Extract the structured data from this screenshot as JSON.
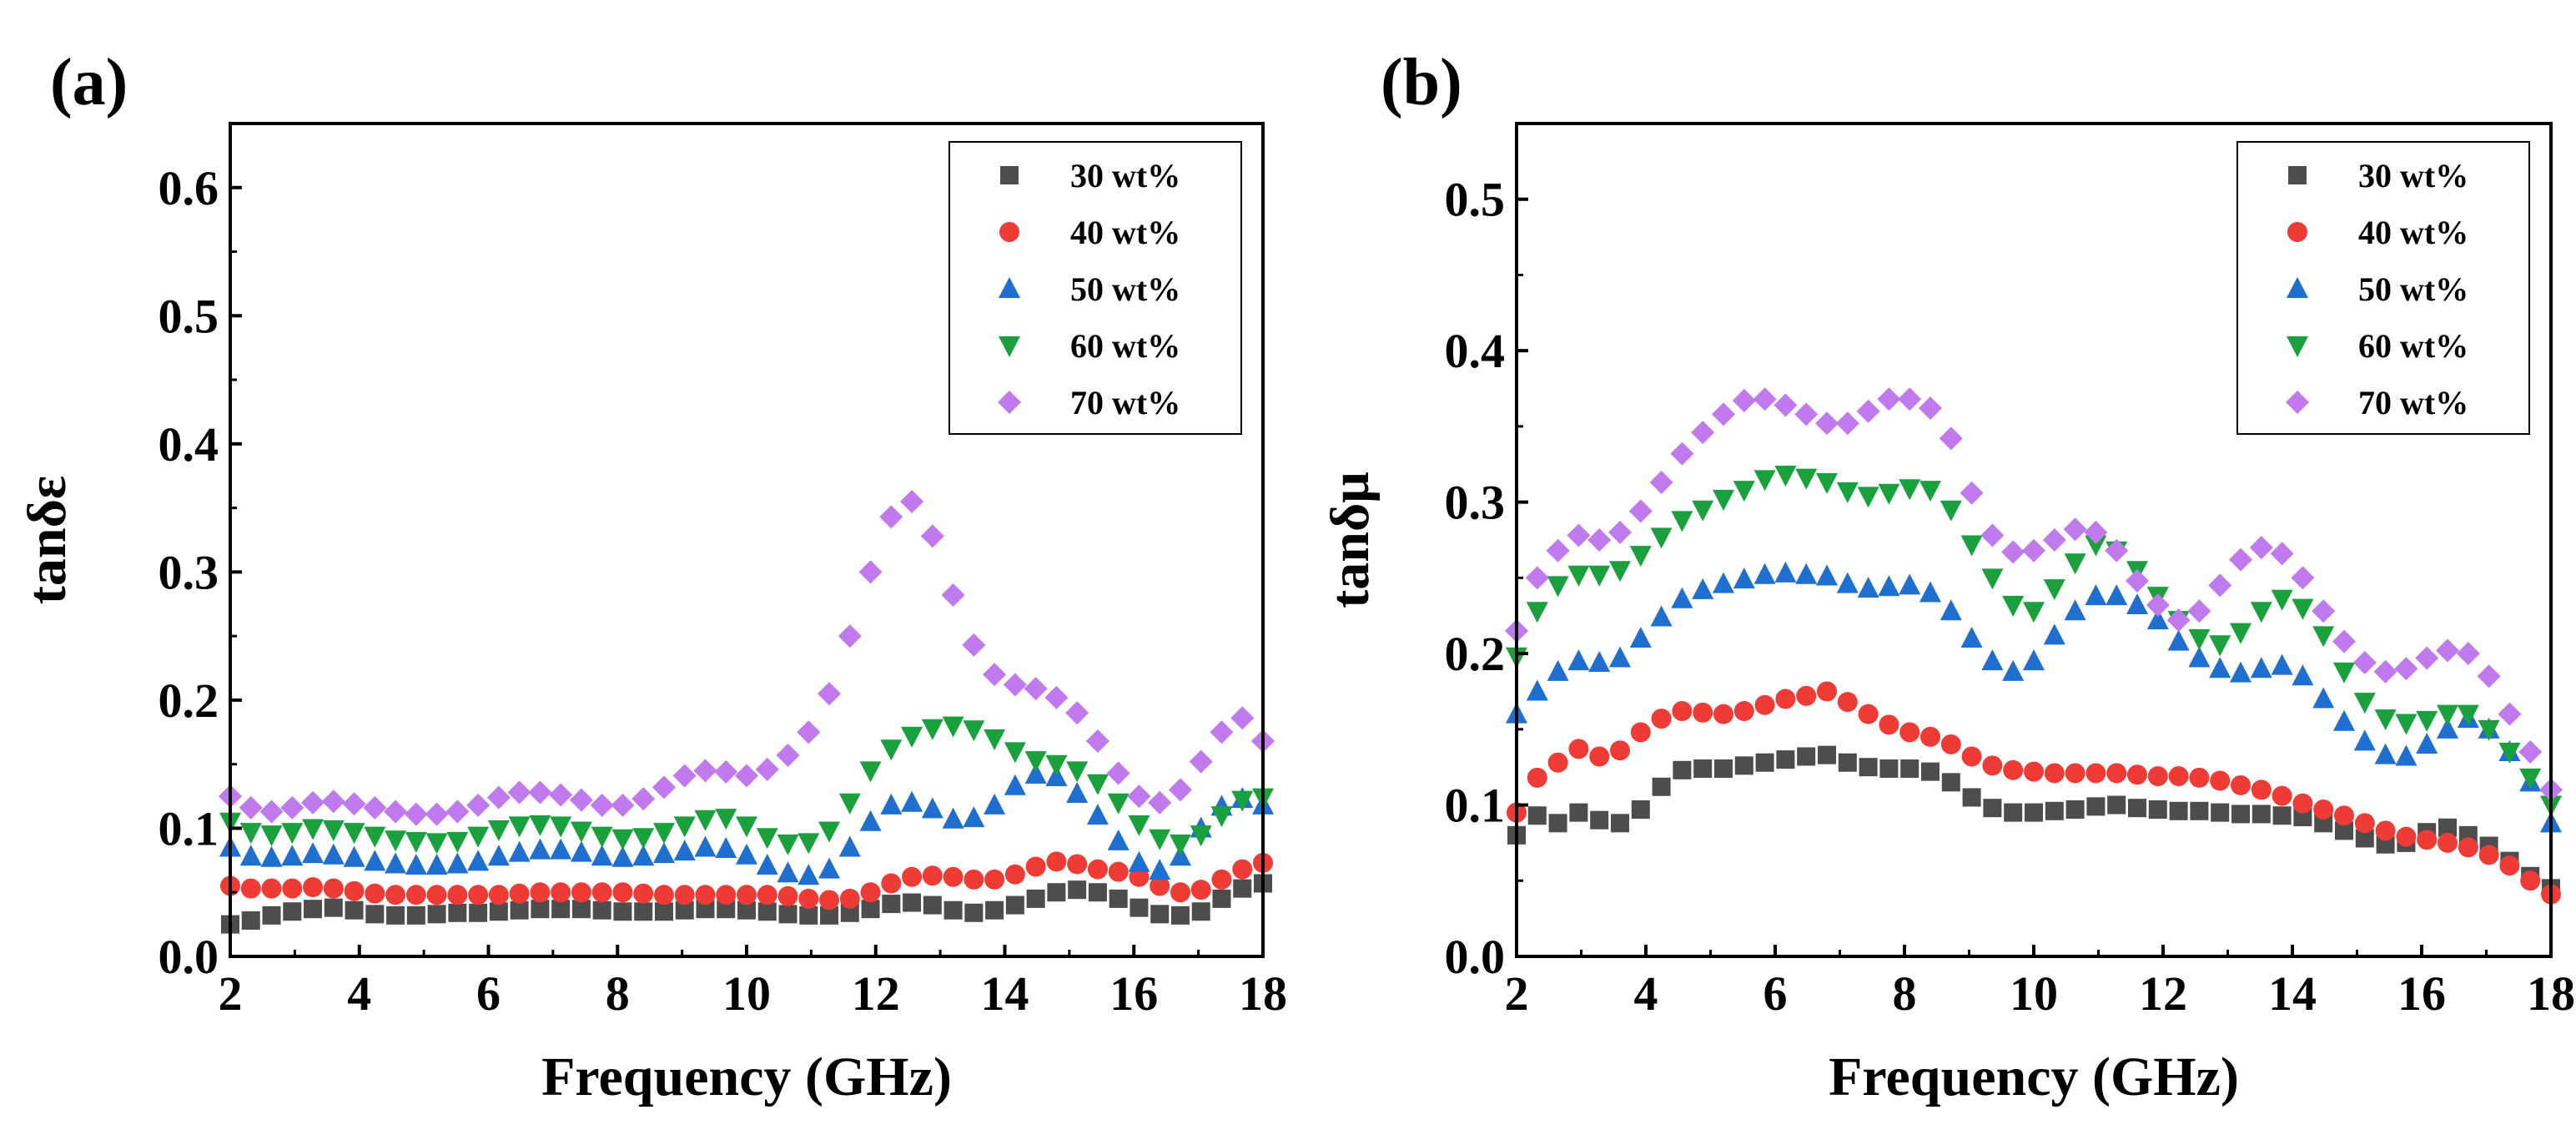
{
  "chart_data": [
    {
      "type": "scatter",
      "panel_label": "(a)",
      "xlabel": "Frequency (GHz)",
      "ylabel": "tanδε",
      "xlim": [
        2,
        18
      ],
      "ylim": [
        0,
        0.65
      ],
      "xticks": [
        2,
        4,
        6,
        8,
        10,
        12,
        14,
        16,
        18
      ],
      "yticks": [
        0.0,
        0.1,
        0.2,
        0.3,
        0.4,
        0.5,
        0.6
      ],
      "ytick_labels": [
        "0.0",
        "0.1",
        "0.2",
        "0.3",
        "0.4",
        "0.5",
        "0.6"
      ],
      "legend_position": "top-right",
      "x": [
        2.0,
        2.32,
        2.64,
        2.96,
        3.28,
        3.6,
        3.92,
        4.24,
        4.56,
        4.88,
        5.2,
        5.52,
        5.84,
        6.16,
        6.48,
        6.8,
        7.12,
        7.44,
        7.76,
        8.08,
        8.4,
        8.72,
        9.04,
        9.36,
        9.68,
        10.0,
        10.32,
        10.64,
        10.96,
        11.28,
        11.6,
        11.92,
        12.24,
        12.56,
        12.88,
        13.2,
        13.52,
        13.84,
        14.16,
        14.48,
        14.8,
        15.12,
        15.44,
        15.76,
        16.08,
        16.4,
        16.72,
        17.04,
        17.36,
        17.68,
        18.0
      ],
      "series": [
        {
          "name": "30 wt%",
          "color": "#4d4d4d",
          "marker": "square",
          "values": [
            0.025,
            0.028,
            0.032,
            0.035,
            0.037,
            0.038,
            0.036,
            0.033,
            0.032,
            0.032,
            0.033,
            0.034,
            0.034,
            0.035,
            0.036,
            0.037,
            0.037,
            0.037,
            0.036,
            0.035,
            0.035,
            0.035,
            0.036,
            0.037,
            0.037,
            0.036,
            0.035,
            0.033,
            0.032,
            0.032,
            0.034,
            0.037,
            0.041,
            0.042,
            0.04,
            0.036,
            0.034,
            0.036,
            0.04,
            0.045,
            0.05,
            0.052,
            0.05,
            0.045,
            0.038,
            0.033,
            0.032,
            0.035,
            0.045,
            0.053,
            0.057
          ]
        },
        {
          "name": "40 wt%",
          "color": "#ef3b36",
          "marker": "circle",
          "values": [
            0.055,
            0.053,
            0.053,
            0.053,
            0.054,
            0.053,
            0.051,
            0.049,
            0.048,
            0.048,
            0.048,
            0.048,
            0.048,
            0.048,
            0.049,
            0.05,
            0.05,
            0.05,
            0.05,
            0.05,
            0.049,
            0.048,
            0.048,
            0.048,
            0.048,
            0.048,
            0.048,
            0.047,
            0.045,
            0.044,
            0.045,
            0.05,
            0.057,
            0.062,
            0.063,
            0.062,
            0.06,
            0.06,
            0.064,
            0.07,
            0.074,
            0.072,
            0.068,
            0.066,
            0.062,
            0.055,
            0.05,
            0.052,
            0.06,
            0.068,
            0.073
          ]
        },
        {
          "name": "50 wt%",
          "color": "#1f6fd1",
          "marker": "triangle-up",
          "values": [
            0.085,
            0.078,
            0.077,
            0.078,
            0.08,
            0.079,
            0.077,
            0.074,
            0.072,
            0.071,
            0.071,
            0.072,
            0.074,
            0.078,
            0.081,
            0.083,
            0.083,
            0.081,
            0.078,
            0.077,
            0.078,
            0.08,
            0.082,
            0.085,
            0.084,
            0.079,
            0.071,
            0.065,
            0.063,
            0.068,
            0.085,
            0.105,
            0.118,
            0.12,
            0.115,
            0.107,
            0.108,
            0.118,
            0.133,
            0.142,
            0.14,
            0.127,
            0.11,
            0.09,
            0.073,
            0.067,
            0.078,
            0.1,
            0.117,
            0.123,
            0.118
          ]
        },
        {
          "name": "60 wt%",
          "color": "#1aa03d",
          "marker": "triangle-down",
          "values": [
            0.105,
            0.097,
            0.095,
            0.097,
            0.1,
            0.099,
            0.097,
            0.094,
            0.091,
            0.09,
            0.089,
            0.09,
            0.094,
            0.099,
            0.102,
            0.103,
            0.102,
            0.098,
            0.094,
            0.092,
            0.093,
            0.097,
            0.102,
            0.107,
            0.108,
            0.102,
            0.093,
            0.088,
            0.089,
            0.098,
            0.12,
            0.145,
            0.162,
            0.172,
            0.178,
            0.18,
            0.177,
            0.17,
            0.16,
            0.153,
            0.15,
            0.145,
            0.135,
            0.12,
            0.103,
            0.092,
            0.088,
            0.095,
            0.11,
            0.122,
            0.124
          ]
        },
        {
          "name": "70 wt%",
          "color": "#c179ee",
          "marker": "diamond",
          "values": [
            0.125,
            0.116,
            0.113,
            0.116,
            0.12,
            0.121,
            0.119,
            0.116,
            0.113,
            0.111,
            0.111,
            0.113,
            0.118,
            0.124,
            0.128,
            0.128,
            0.126,
            0.122,
            0.118,
            0.118,
            0.123,
            0.132,
            0.141,
            0.145,
            0.144,
            0.141,
            0.146,
            0.157,
            0.175,
            0.205,
            0.25,
            0.3,
            0.343,
            0.355,
            0.328,
            0.282,
            0.243,
            0.22,
            0.212,
            0.209,
            0.202,
            0.19,
            0.168,
            0.143,
            0.125,
            0.12,
            0.13,
            0.152,
            0.175,
            0.186,
            0.168
          ]
        }
      ]
    },
    {
      "type": "scatter",
      "panel_label": "(b)",
      "xlabel": "Frequency (GHz)",
      "ylabel": "tanδμ",
      "xlim": [
        2,
        18
      ],
      "ylim": [
        0,
        0.55
      ],
      "xticks": [
        2,
        4,
        6,
        8,
        10,
        12,
        14,
        16,
        18
      ],
      "yticks": [
        0.0,
        0.1,
        0.2,
        0.3,
        0.4,
        0.5
      ],
      "ytick_labels": [
        "0.0",
        "0.1",
        "0.2",
        "0.3",
        "0.4",
        "0.5"
      ],
      "legend_position": "top-right",
      "x": [
        2.0,
        2.32,
        2.64,
        2.96,
        3.28,
        3.6,
        3.92,
        4.24,
        4.56,
        4.88,
        5.2,
        5.52,
        5.84,
        6.16,
        6.48,
        6.8,
        7.12,
        7.44,
        7.76,
        8.08,
        8.4,
        8.72,
        9.04,
        9.36,
        9.68,
        10.0,
        10.32,
        10.64,
        10.96,
        11.28,
        11.6,
        11.92,
        12.24,
        12.56,
        12.88,
        13.2,
        13.52,
        13.84,
        14.16,
        14.48,
        14.8,
        15.12,
        15.44,
        15.76,
        16.08,
        16.4,
        16.72,
        17.04,
        17.36,
        17.68,
        18.0
      ],
      "series": [
        {
          "name": "30 wt%",
          "color": "#4d4d4d",
          "marker": "square",
          "values": [
            0.08,
            0.093,
            0.088,
            0.095,
            0.09,
            0.088,
            0.097,
            0.112,
            0.123,
            0.124,
            0.124,
            0.126,
            0.128,
            0.13,
            0.132,
            0.133,
            0.128,
            0.125,
            0.124,
            0.124,
            0.122,
            0.115,
            0.105,
            0.098,
            0.095,
            0.095,
            0.096,
            0.097,
            0.099,
            0.1,
            0.098,
            0.097,
            0.096,
            0.096,
            0.095,
            0.094,
            0.094,
            0.093,
            0.092,
            0.088,
            0.083,
            0.078,
            0.074,
            0.075,
            0.082,
            0.085,
            0.08,
            0.073,
            0.063,
            0.053,
            0.045
          ]
        },
        {
          "name": "40 wt%",
          "color": "#ef3b36",
          "marker": "circle",
          "values": [
            0.095,
            0.118,
            0.128,
            0.137,
            0.132,
            0.136,
            0.148,
            0.157,
            0.162,
            0.161,
            0.16,
            0.162,
            0.166,
            0.17,
            0.172,
            0.175,
            0.168,
            0.16,
            0.153,
            0.148,
            0.145,
            0.14,
            0.132,
            0.126,
            0.123,
            0.122,
            0.121,
            0.121,
            0.121,
            0.121,
            0.12,
            0.119,
            0.119,
            0.118,
            0.116,
            0.113,
            0.11,
            0.106,
            0.101,
            0.097,
            0.093,
            0.088,
            0.083,
            0.079,
            0.077,
            0.075,
            0.072,
            0.067,
            0.06,
            0.05,
            0.041
          ]
        },
        {
          "name": "50 wt%",
          "color": "#1f6fd1",
          "marker": "triangle-up",
          "values": [
            0.16,
            0.175,
            0.188,
            0.195,
            0.194,
            0.197,
            0.21,
            0.224,
            0.236,
            0.242,
            0.246,
            0.249,
            0.252,
            0.253,
            0.252,
            0.251,
            0.246,
            0.243,
            0.244,
            0.245,
            0.24,
            0.228,
            0.21,
            0.195,
            0.188,
            0.195,
            0.212,
            0.228,
            0.238,
            0.238,
            0.232,
            0.222,
            0.208,
            0.197,
            0.19,
            0.187,
            0.19,
            0.192,
            0.185,
            0.17,
            0.155,
            0.142,
            0.133,
            0.132,
            0.14,
            0.15,
            0.157,
            0.15,
            0.135,
            0.115,
            0.088
          ]
        },
        {
          "name": "60 wt%",
          "color": "#1aa03d",
          "marker": "triangle-down",
          "values": [
            0.198,
            0.228,
            0.245,
            0.252,
            0.252,
            0.255,
            0.265,
            0.277,
            0.288,
            0.295,
            0.302,
            0.308,
            0.315,
            0.318,
            0.316,
            0.313,
            0.307,
            0.304,
            0.306,
            0.309,
            0.308,
            0.295,
            0.272,
            0.25,
            0.232,
            0.228,
            0.243,
            0.26,
            0.272,
            0.268,
            0.255,
            0.238,
            0.222,
            0.21,
            0.206,
            0.214,
            0.228,
            0.236,
            0.23,
            0.212,
            0.188,
            0.168,
            0.157,
            0.154,
            0.156,
            0.16,
            0.16,
            0.15,
            0.135,
            0.118,
            0.1
          ]
        },
        {
          "name": "70 wt%",
          "color": "#c179ee",
          "marker": "diamond",
          "values": [
            0.215,
            0.25,
            0.268,
            0.278,
            0.275,
            0.28,
            0.294,
            0.313,
            0.332,
            0.346,
            0.358,
            0.367,
            0.368,
            0.364,
            0.358,
            0.352,
            0.352,
            0.36,
            0.368,
            0.368,
            0.362,
            0.342,
            0.306,
            0.278,
            0.267,
            0.268,
            0.275,
            0.282,
            0.28,
            0.268,
            0.248,
            0.232,
            0.222,
            0.228,
            0.245,
            0.262,
            0.27,
            0.266,
            0.25,
            0.228,
            0.208,
            0.194,
            0.188,
            0.19,
            0.197,
            0.202,
            0.2,
            0.185,
            0.16,
            0.135,
            0.11
          ]
        }
      ]
    }
  ]
}
